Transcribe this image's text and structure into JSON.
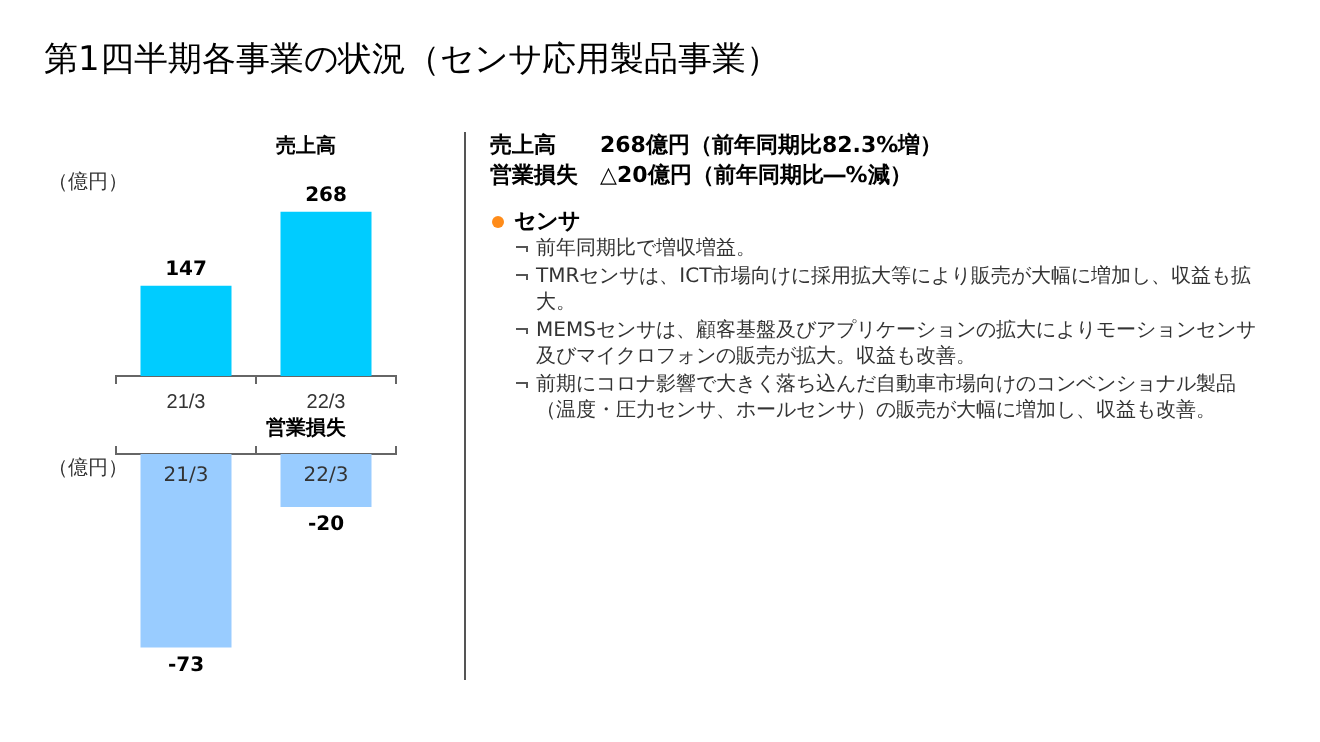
{
  "chart_data": [
    {
      "type": "other",
      "title": "第1四半期各事業の状況（センサ応用製品事業）",
      "annotations": [
        "売上高　　268億円（前年同期比82.3%増）",
        "営業損失　△20億円（前年同期比―%減）"
      ]
    },
    {
      "type": "bar",
      "title": "売上高",
      "ylabel": "（億円）",
      "categories": [
        "21/3",
        "22/3"
      ],
      "values": [
        147,
        268
      ],
      "color": "#00ccff",
      "data_labels": true
    },
    {
      "type": "bar",
      "title": "営業損失",
      "ylabel": "（億円）",
      "categories": [
        "21/3",
        "22/3"
      ],
      "values": [
        -73,
        -20
      ],
      "color": "#99ccff",
      "data_labels": true
    },
    {
      "type": "other",
      "title": "センサ",
      "annotations": [
        "前年同期比で増収増益。",
        "TMRセンサは、ICT市場向けに採用拡大等により販売が大幅に増加し、収益も拡大。",
        "MEMSセンサは、顧客基盤及びアプリケーションの拡大によりモーションセンサ及びマイクロフォンの販売が拡大。収益も改善。",
        "前期にコロナ影響で大きく落ち込んだ自動車市場向けのコンベンショナル製品（温度・圧力センサ、ホールセンサ）の販売が大幅に増加し、収益も改善。"
      ]
    }
  ]
}
